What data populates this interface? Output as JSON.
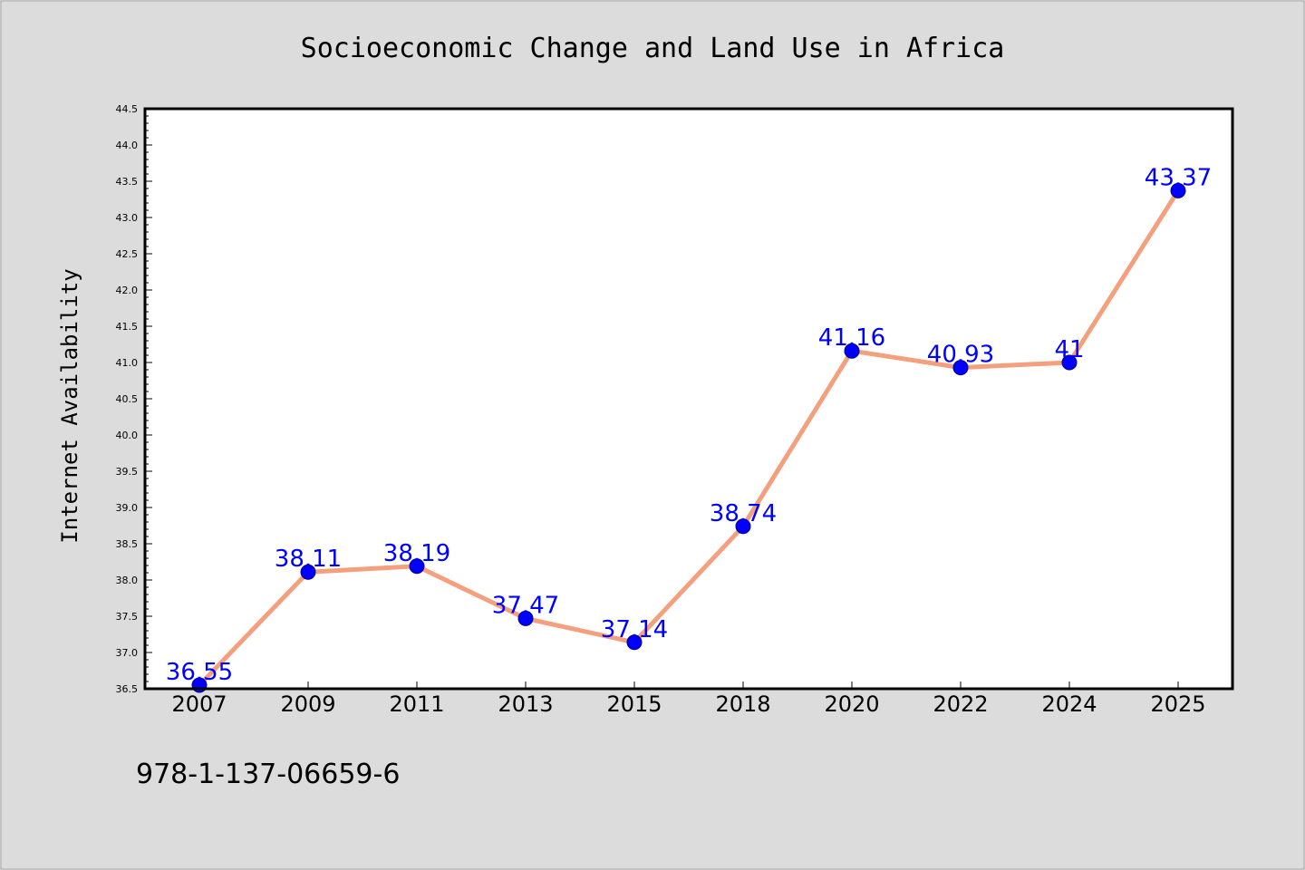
{
  "footer_text": "978-1-137-06659-6",
  "colors": {
    "figure_background": "#dcdcdc",
    "plot_background": "#ffffff",
    "line": "#f4a07f",
    "marker": "#0000ff",
    "data_label": "#0000ff"
  },
  "chart_data": {
    "type": "line",
    "title": "Socioeconomic Change and Land Use in Africa",
    "xlabel": "",
    "ylabel": "Internet Availability",
    "categories": [
      "2007",
      "2009",
      "2011",
      "2013",
      "2015",
      "2018",
      "2020",
      "2022",
      "2024",
      "2025"
    ],
    "series": [
      {
        "values": [
          36.55,
          38.11,
          38.19,
          37.47,
          37.14,
          38.74,
          41.16,
          40.93,
          41,
          43.37
        ],
        "labels": [
          "36.55",
          "38.11",
          "38.19",
          "37.47",
          "37.14",
          "38.74",
          "41.16",
          "40.93",
          "41",
          "43.37"
        ]
      }
    ],
    "ylim": [
      36.5,
      44.5
    ],
    "yticks": [
      "36.5",
      "37.0",
      "37.5",
      "38.0",
      "38.5",
      "39.0",
      "39.5",
      "40.0",
      "40.5",
      "41.0",
      "41.5",
      "42.0",
      "42.5",
      "43.0",
      "43.5",
      "44.0",
      "44.5"
    ],
    "grid": false,
    "legend": "none"
  }
}
